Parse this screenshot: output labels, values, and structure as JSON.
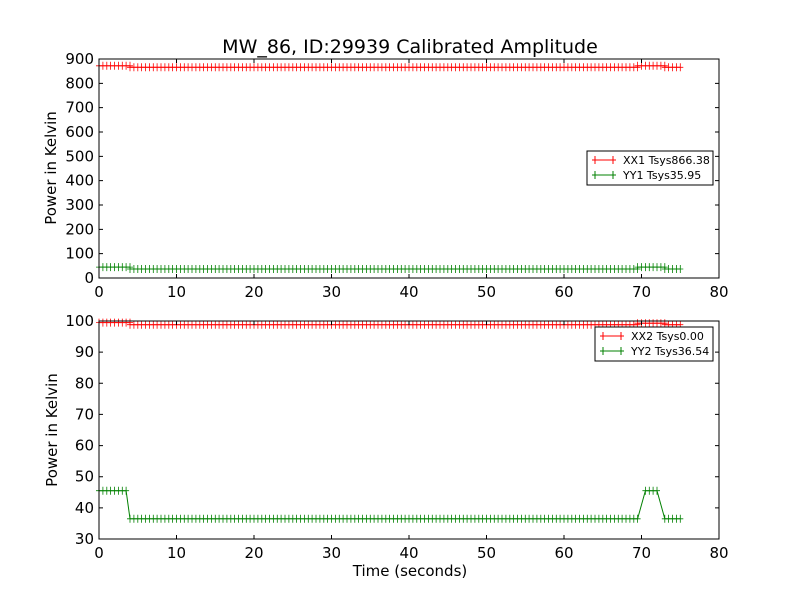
{
  "chart_data": [
    {
      "type": "line",
      "title": "MW_86, ID:29939 Calibrated Amplitude",
      "xlabel": "",
      "ylabel": "Power in Kelvin",
      "xlim": [
        0,
        80
      ],
      "ylim": [
        0,
        900
      ],
      "xticks": [
        0,
        10,
        20,
        30,
        40,
        50,
        60,
        70,
        80
      ],
      "yticks": [
        0,
        100,
        200,
        300,
        400,
        500,
        600,
        700,
        800,
        900
      ],
      "legend_position": "right",
      "series": [
        {
          "name": "XX1 Tsys866.38",
          "color": "#ff0000",
          "segments": [
            [
              0,
              4,
              872
            ],
            [
              4,
              69.5,
              866
            ],
            [
              69.5,
              73,
              872
            ],
            [
              73,
              75,
              866
            ]
          ]
        },
        {
          "name": "YY1 Tsys35.95",
          "color": "#008000",
          "segments": [
            [
              0,
              4,
              45
            ],
            [
              4,
              69.5,
              37
            ],
            [
              69.5,
              73,
              45
            ],
            [
              73,
              75,
              37
            ]
          ]
        }
      ]
    },
    {
      "type": "line",
      "title": "",
      "xlabel": "Time (seconds)",
      "ylabel": "Power in Kelvin",
      "xlim": [
        0,
        80
      ],
      "ylim": [
        30,
        100
      ],
      "xticks": [
        0,
        10,
        20,
        30,
        40,
        50,
        60,
        70,
        80
      ],
      "yticks": [
        30,
        40,
        50,
        60,
        70,
        80,
        90,
        100
      ],
      "legend_position": "top-right",
      "series": [
        {
          "name": "XX2 Tsys0.00",
          "color": "#ff0000",
          "segments": [
            [
              0,
              4,
              99.5
            ],
            [
              4,
              69.5,
              98.8
            ],
            [
              69.5,
              73,
              99.3
            ],
            [
              73,
              75,
              98.8
            ]
          ]
        },
        {
          "name": "YY2 Tsys36.54",
          "color": "#008000",
          "segments": [
            [
              0,
              3.5,
              45.5
            ],
            [
              4,
              69.5,
              36.5
            ],
            [
              70.5,
              72,
              45.5
            ],
            [
              73,
              75,
              36.5
            ]
          ]
        }
      ]
    }
  ]
}
